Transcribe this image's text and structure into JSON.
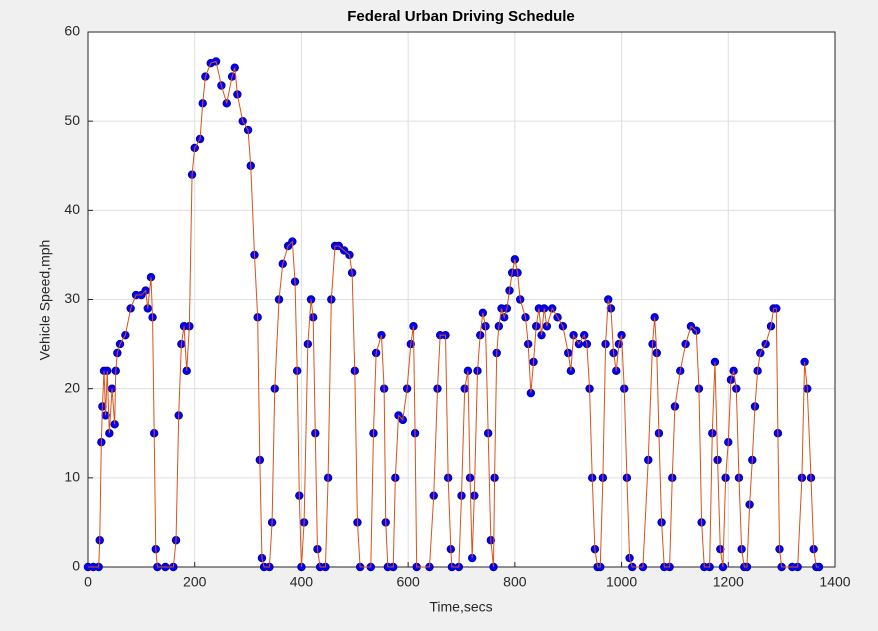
{
  "chart_data": {
    "type": "line",
    "title": "Federal Urban Driving Schedule",
    "x_label": "Time,secs",
    "y_label": "Vehicle Speed,mph",
    "x": [
      0,
      10,
      20,
      22,
      25,
      27,
      30,
      33,
      36,
      40,
      45,
      50,
      52,
      55,
      60,
      70,
      80,
      90,
      100,
      108,
      112,
      118,
      121,
      124,
      127,
      130,
      145,
      160,
      165,
      170,
      175,
      180,
      185,
      190,
      195,
      200,
      210,
      215,
      220,
      230,
      240,
      250,
      260,
      270,
      275,
      280,
      290,
      300,
      305,
      312,
      318,
      322,
      326,
      330,
      340,
      345,
      350,
      358,
      365,
      375,
      383,
      388,
      392,
      396,
      400,
      405,
      412,
      418,
      422,
      426,
      430,
      435,
      445,
      450,
      456,
      463,
      470,
      480,
      490,
      495,
      500,
      505,
      510,
      530,
      535,
      540,
      550,
      555,
      558,
      562,
      572,
      576,
      582,
      590,
      598,
      605,
      610,
      613,
      616,
      640,
      648,
      655,
      660,
      670,
      675,
      680,
      682,
      695,
      700,
      706,
      712,
      716,
      720,
      724,
      730,
      735,
      740,
      745,
      750,
      755,
      760,
      762,
      766,
      770,
      775,
      780,
      785,
      790,
      795,
      800,
      805,
      810,
      820,
      825,
      830,
      835,
      840,
      845,
      850,
      855,
      860,
      870,
      880,
      890,
      900,
      905,
      910,
      920,
      930,
      935,
      940,
      945,
      950,
      955,
      960,
      965,
      970,
      975,
      980,
      985,
      990,
      995,
      1000,
      1005,
      1010,
      1015,
      1020,
      1040,
      1050,
      1058,
      1062,
      1066,
      1070,
      1075,
      1080,
      1090,
      1095,
      1100,
      1110,
      1120,
      1130,
      1140,
      1145,
      1150,
      1155,
      1165,
      1170,
      1175,
      1180,
      1185,
      1190,
      1195,
      1200,
      1205,
      1210,
      1215,
      1220,
      1225,
      1230,
      1235,
      1240,
      1245,
      1250,
      1255,
      1260,
      1270,
      1280,
      1285,
      1290,
      1293,
      1296,
      1300,
      1320,
      1330,
      1338,
      1343,
      1348,
      1355,
      1360,
      1365,
      1370
    ],
    "series": [
      {
        "line_color": "#d95319",
        "marker_color": "#0000ff",
        "values": [
          0,
          0,
          0,
          3,
          14,
          18,
          22,
          17,
          22,
          15,
          20,
          16,
          22,
          24,
          25,
          26,
          29,
          30.5,
          30.5,
          31,
          29,
          32.5,
          28,
          15,
          2,
          0,
          0,
          0,
          3,
          17,
          25,
          27,
          22,
          27,
          44,
          47,
          48,
          52,
          55,
          56.5,
          56.7,
          54,
          52,
          55,
          56,
          53,
          50,
          49,
          45,
          35,
          28,
          12,
          1,
          0,
          0,
          5,
          20,
          30,
          34,
          36,
          36.5,
          32,
          22,
          8,
          0,
          5,
          25,
          30,
          28,
          15,
          2,
          0,
          0,
          10,
          30,
          36,
          36,
          35.5,
          35,
          33,
          22,
          5,
          0,
          0,
          15,
          24,
          26,
          20,
          5,
          0,
          0,
          10,
          17,
          16.5,
          20,
          25,
          27,
          15,
          0,
          0,
          8,
          20,
          26,
          26,
          10,
          2,
          0,
          0,
          8,
          20,
          22,
          10,
          1,
          8,
          22,
          26,
          28.5,
          27,
          15,
          3,
          0,
          10,
          24,
          27,
          29,
          28,
          29,
          31,
          33,
          34.5,
          33,
          30,
          28,
          25,
          19.5,
          23,
          27,
          29,
          26,
          29,
          27,
          29,
          28,
          27,
          24,
          22,
          26,
          25,
          26,
          25,
          20,
          10,
          2,
          0,
          0,
          10,
          25,
          30,
          29,
          24,
          22,
          25,
          26,
          20,
          10,
          1,
          0,
          0,
          12,
          25,
          28,
          24,
          15,
          5,
          0,
          0,
          10,
          18,
          22,
          25,
          27,
          26.5,
          20,
          5,
          0,
          0,
          15,
          23,
          12,
          2,
          0,
          10,
          14,
          21,
          22,
          20,
          10,
          2,
          0,
          0,
          7,
          12,
          18,
          22,
          24,
          25,
          27,
          29,
          29,
          15,
          2,
          0,
          0,
          0,
          10,
          23,
          20,
          10,
          2,
          0,
          0
        ]
      }
    ],
    "xlim": [
      0,
      1400
    ],
    "xticks": [
      0,
      200,
      400,
      600,
      800,
      1000,
      1200,
      1400
    ],
    "ylim": [
      0,
      60
    ],
    "yticks": [
      0,
      10,
      20,
      30,
      40,
      50,
      60
    ],
    "grid": true
  }
}
